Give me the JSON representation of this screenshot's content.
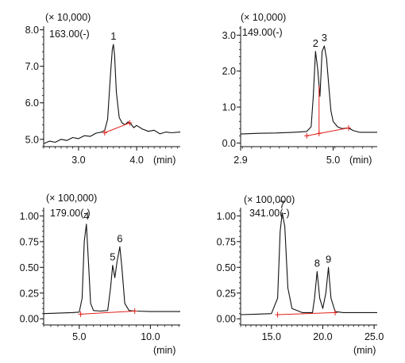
{
  "chart_data": [
    {
      "type": "line",
      "panel_label": "163.00(-)",
      "scale_label": "(× 10,000)",
      "xunit": "(min)",
      "xlim": [
        2.4,
        4.75
      ],
      "ylim": [
        4.8,
        8.1
      ],
      "xticks": [
        3.0,
        4.0
      ],
      "xtick_labels": [
        "3.0",
        "4.0"
      ],
      "yticks": [
        5.0,
        6.0,
        7.0,
        8.0
      ],
      "ytick_labels": [
        "5.0",
        "6.0",
        "7.0",
        "8.0"
      ],
      "x": [
        2.4,
        2.5,
        2.6,
        2.7,
        2.8,
        2.9,
        3.0,
        3.1,
        3.2,
        3.3,
        3.4,
        3.45,
        3.5,
        3.55,
        3.58,
        3.6,
        3.62,
        3.65,
        3.7,
        3.75,
        3.8,
        3.85,
        3.9,
        3.95,
        4.0,
        4.1,
        4.2,
        4.3,
        4.4,
        4.5,
        4.6,
        4.75
      ],
      "y": [
        4.88,
        4.95,
        4.92,
        5.0,
        4.97,
        5.05,
        5.02,
        5.1,
        5.08,
        5.17,
        5.2,
        5.25,
        5.55,
        6.8,
        7.45,
        7.6,
        7.3,
        6.3,
        5.6,
        5.45,
        5.4,
        5.48,
        5.42,
        5.32,
        5.38,
        5.28,
        5.22,
        5.25,
        5.15,
        5.2,
        5.18,
        5.2
      ],
      "peaks": [
        {
          "label": "1",
          "x": 3.6,
          "y": 7.6
        }
      ],
      "integration": [
        {
          "x1": 3.45,
          "y1": 5.18,
          "x2": 3.88,
          "y2": 5.45
        }
      ]
    },
    {
      "type": "line",
      "panel_label": "149.00(-)",
      "scale_label": "(× 10,000)",
      "xunit": "(min)",
      "xlim": [
        2.9,
        6.0
      ],
      "ylim": [
        -0.1,
        3.25
      ],
      "xticks": [
        2.9,
        5.0
      ],
      "xtick_labels": [
        "2.9",
        "5.0"
      ],
      "yticks": [
        0.0,
        1.0,
        2.0,
        3.0
      ],
      "ytick_labels": [
        "0.0",
        "1.0",
        "2.0",
        "3.0"
      ],
      "x": [
        2.9,
        3.3,
        3.7,
        4.1,
        4.4,
        4.5,
        4.55,
        4.6,
        4.65,
        4.7,
        4.75,
        4.8,
        4.85,
        4.9,
        4.95,
        5.0,
        5.1,
        5.2,
        5.35,
        5.45,
        5.6,
        5.8,
        6.0
      ],
      "y": [
        0.25,
        0.27,
        0.28,
        0.3,
        0.32,
        0.45,
        1.3,
        2.55,
        2.05,
        1.3,
        2.55,
        2.7,
        2.35,
        1.6,
        0.9,
        0.6,
        0.45,
        0.4,
        0.42,
        0.35,
        0.3,
        0.3,
        0.3
      ],
      "peaks": [
        {
          "label": "2",
          "x": 4.6,
          "y": 2.55
        },
        {
          "label": "3",
          "x": 4.8,
          "y": 2.7
        }
      ],
      "integration": [
        {
          "x1": 4.4,
          "y1": 0.2,
          "x2": 5.35,
          "y2": 0.42
        }
      ],
      "drop_lines": [
        4.68
      ]
    },
    {
      "type": "line",
      "panel_label": "179.00(-)",
      "scale_label": "(× 100,000)",
      "xunit": "(min)",
      "xlim": [
        2.5,
        12.1
      ],
      "ylim": [
        -0.06,
        1.08
      ],
      "xticks": [
        5.0,
        10.0
      ],
      "xtick_labels": [
        "5.0",
        "10.0"
      ],
      "yticks": [
        0.0,
        0.25,
        0.5,
        0.75,
        1.0
      ],
      "ytick_labels": [
        "0.00",
        "0.25",
        "0.50",
        "0.75",
        "1.00"
      ],
      "x": [
        2.5,
        3.5,
        4.5,
        5.0,
        5.2,
        5.35,
        5.5,
        5.65,
        5.8,
        6.0,
        6.5,
        7.0,
        7.2,
        7.35,
        7.5,
        7.65,
        7.85,
        8.0,
        8.2,
        8.5,
        9.0,
        10.0,
        11.0,
        12.1
      ],
      "y": [
        0.05,
        0.055,
        0.06,
        0.065,
        0.2,
        0.75,
        0.92,
        0.55,
        0.15,
        0.08,
        0.075,
        0.08,
        0.3,
        0.52,
        0.4,
        0.55,
        0.7,
        0.5,
        0.15,
        0.08,
        0.075,
        0.07,
        0.07,
        0.07
      ],
      "peaks": [
        {
          "label": "4",
          "x": 5.5,
          "y": 0.92
        },
        {
          "label": "5",
          "x": 7.35,
          "y": 0.52
        },
        {
          "label": "6",
          "x": 7.85,
          "y": 0.7
        }
      ],
      "integration": [
        {
          "x1": 5.1,
          "y1": 0.045,
          "x2": 8.9,
          "y2": 0.075
        }
      ]
    },
    {
      "type": "line",
      "panel_label": "341.00(-)",
      "scale_label": "(× 100,000)",
      "xunit": "(min)",
      "xlim": [
        12.0,
        25.3
      ],
      "ylim": [
        -0.06,
        1.08
      ],
      "xticks": [
        15.0,
        20.0,
        25.0
      ],
      "xtick_labels": [
        "15.0",
        "20.0",
        "25.0"
      ],
      "yticks": [
        0.0,
        0.25,
        0.5,
        0.75,
        1.0
      ],
      "ytick_labels": [
        "0.00",
        "0.25",
        "0.50",
        "0.75",
        "1.00"
      ],
      "x": [
        12.0,
        13.5,
        15.0,
        15.6,
        15.85,
        16.05,
        16.3,
        16.6,
        17.0,
        18.0,
        19.0,
        19.2,
        19.45,
        19.7,
        20.0,
        20.3,
        20.55,
        20.8,
        21.2,
        22.0,
        23.5,
        25.3
      ],
      "y": [
        0.04,
        0.045,
        0.05,
        0.2,
        0.85,
        1.03,
        0.9,
        0.3,
        0.1,
        0.06,
        0.06,
        0.2,
        0.46,
        0.2,
        0.1,
        0.25,
        0.5,
        0.2,
        0.07,
        0.06,
        0.06,
        0.06
      ],
      "peaks": [
        {
          "label": "7",
          "x": 16.05,
          "y": 1.03
        },
        {
          "label": "8",
          "x": 19.45,
          "y": 0.46
        },
        {
          "label": "9",
          "x": 20.55,
          "y": 0.5
        }
      ],
      "integration": [
        {
          "x1": 15.6,
          "y1": 0.04,
          "x2": 21.2,
          "y2": 0.06
        }
      ]
    }
  ]
}
